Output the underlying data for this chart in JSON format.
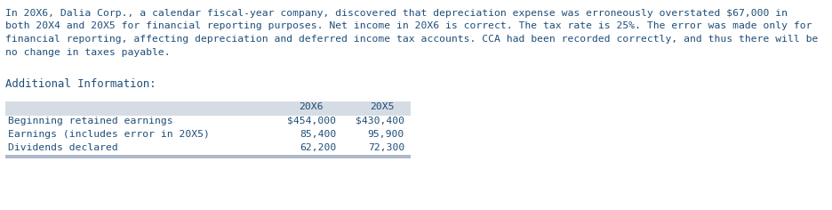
{
  "paragraph_lines": [
    "In 20X6, Dalia Corp., a calendar fiscal-year company, discovered that depreciation expense was erroneously overstated $67,000 in",
    "both 20X4 and 20X5 for financial reporting purposes. Net income in 20X6 is correct. The tax rate is 25%. The error was made only for",
    "financial reporting, affecting depreciation and deferred income tax accounts. CCA had been recorded correctly, and thus there will be",
    "no change in taxes payable."
  ],
  "additional_label": "Additional Information:",
  "table_header_col1": "20X6",
  "table_header_col2": "20X5",
  "table_rows": [
    [
      "Beginning retained earnings",
      "$454,000",
      "$430,400"
    ],
    [
      "Earnings (includes error in 20X5)",
      "85,400",
      "95,900"
    ],
    [
      "Dividends declared",
      "62,200",
      "72,300"
    ]
  ],
  "text_color": "#1F4E79",
  "header_bg": "#D6DCE4",
  "table_bottom_bg": "#ADB9CA",
  "font_size_para": 8.2,
  "font_size_table": 8.2,
  "font_size_additional": 8.8,
  "bg_color": "#FFFFFF",
  "fig_width": 9.36,
  "fig_height": 2.36,
  "dpi": 100
}
